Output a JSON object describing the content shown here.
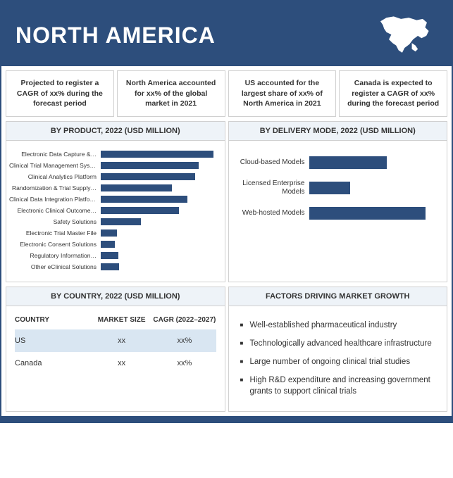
{
  "header": {
    "title": "NORTH AMERICA"
  },
  "colors": {
    "brand": "#2d4e7c",
    "panel_bg": "#eef3f8",
    "border": "#d0d0d0",
    "row_hl": "#d9e6f2"
  },
  "stats": [
    "Projected to register a CAGR of xx% during the forecast period",
    "North America accounted for xx% of the global market in 2021",
    "US accounted for the largest share of xx% of North America in 2021",
    "Canada is expected to register a CAGR of xx% during the forecast period"
  ],
  "product_chart": {
    "title": "BY PRODUCT, 2022 (USD MILLION)",
    "type": "bar",
    "orientation": "horizontal",
    "bar_color": "#2d4e7c",
    "max": 100,
    "items": [
      {
        "label": "Electronic Data Capture &…",
        "value": 98
      },
      {
        "label": "Clinical Trial Management Systems",
        "value": 85
      },
      {
        "label": "Clinical Analytics Platform",
        "value": 82
      },
      {
        "label": "Randomization & Trial Supply…",
        "value": 62
      },
      {
        "label": "Clinical Data Integration Platforms",
        "value": 75
      },
      {
        "label": "Electronic Clinical Outcome…",
        "value": 68
      },
      {
        "label": "Safety Solutions",
        "value": 35
      },
      {
        "label": "Electronic Trial Master File",
        "value": 14
      },
      {
        "label": "Electronic Consent Solutions",
        "value": 12
      },
      {
        "label": "Regulatory Information…",
        "value": 15
      },
      {
        "label": "Other eClinical Solutions",
        "value": 16
      }
    ]
  },
  "delivery_chart": {
    "title": "BY DELIVERY MODE, 2022 (USD MILLION)",
    "type": "bar",
    "orientation": "horizontal",
    "bar_color": "#2d4e7c",
    "max": 100,
    "items": [
      {
        "label": "Cloud-based Models",
        "value": 60
      },
      {
        "label": "Licensed Enterprise Models",
        "value": 32
      },
      {
        "label": "Web-hosted Models",
        "value": 90
      }
    ]
  },
  "country_panel": {
    "title": "BY COUNTRY, 2022 (USD MILLION)",
    "columns": [
      "COUNTRY",
      "MARKET SIZE",
      "CAGR (2022–2027)"
    ],
    "rows": [
      {
        "country": "US",
        "size": "xx",
        "cagr": "xx%",
        "hl": true
      },
      {
        "country": "Canada",
        "size": "xx",
        "cagr": "xx%",
        "hl": false
      }
    ]
  },
  "factors_panel": {
    "title": "FACTORS DRIVING MARKET GROWTH",
    "items": [
      "Well-established pharmaceutical industry",
      "Technologically advanced healthcare infrastructure",
      "Large number of ongoing clinical trial studies",
      "High R&D expenditure and increasing government grants to support clinical trials"
    ]
  }
}
